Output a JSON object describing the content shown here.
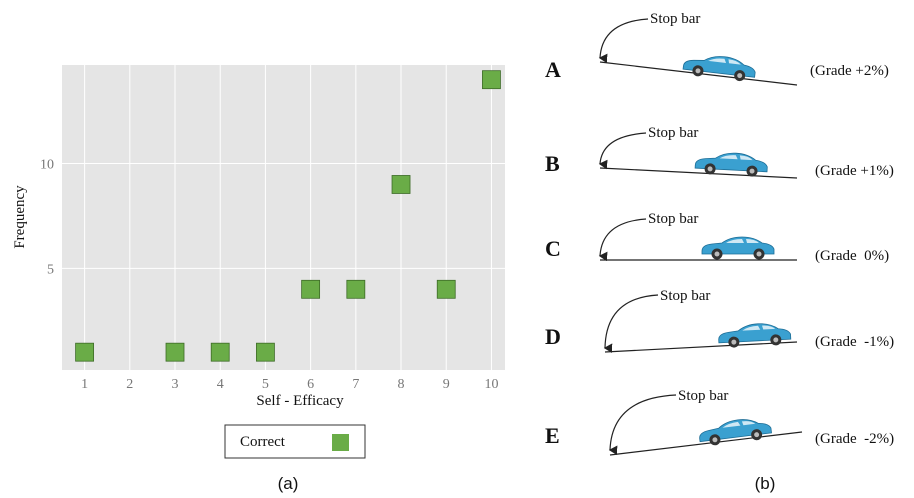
{
  "chart_data": {
    "type": "scatter",
    "xlabel": "Self - Efficacy",
    "ylabel": "Frequency",
    "x": [
      1,
      3,
      4,
      5,
      6,
      7,
      8,
      9,
      10
    ],
    "series": [
      {
        "name": "Correct",
        "color": "#6aac47",
        "values": [
          1,
          1,
          1,
          1,
          4,
          4,
          9,
          4,
          14
        ]
      }
    ],
    "xlim": [
      0.5,
      10.3
    ],
    "xticks": [
      1,
      2,
      3,
      4,
      5,
      6,
      7,
      8,
      9,
      10
    ],
    "ylim": [
      0.15,
      14.7
    ],
    "yticks": [
      5,
      10
    ],
    "grid": true,
    "legend": "bottom",
    "caption": "(a)"
  },
  "diagram": {
    "caption": "(b)",
    "panels": [
      {
        "label": "A",
        "stop": "Stop bar",
        "grade": "(Grade +2%)"
      },
      {
        "label": "B",
        "stop": "Stop bar",
        "grade": "(Grade +1%)"
      },
      {
        "label": "C",
        "stop": "Stop bar",
        "grade": "(Grade  0%)"
      },
      {
        "label": "D",
        "stop": "Stop bar",
        "grade": "(Grade  -1%)"
      },
      {
        "label": "E",
        "stop": "Stop bar",
        "grade": "(Grade  -2%)"
      }
    ]
  }
}
